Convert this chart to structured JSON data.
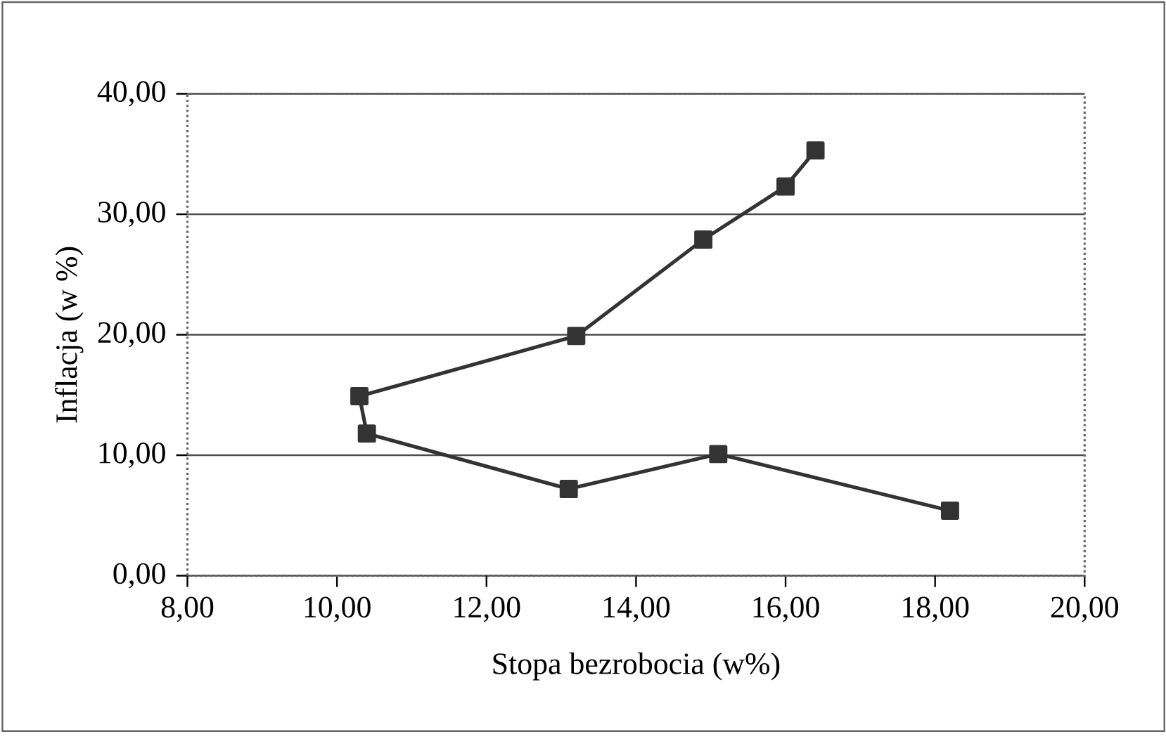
{
  "chart_data": {
    "type": "line",
    "xlabel": "Stopa bezrobocia (w%)",
    "ylabel": "Inflacja (w %)",
    "series": [
      {
        "color": "#333333",
        "x": [
          16.4,
          16.0,
          14.9,
          13.2,
          10.3,
          10.4,
          13.1,
          15.1,
          18.2
        ],
        "values": [
          35.3,
          32.3,
          27.9,
          19.9,
          14.9,
          11.8,
          7.2,
          10.1,
          5.4
        ]
      }
    ],
    "xlim": [
      8,
      20
    ],
    "ylim": [
      0,
      40
    ],
    "xticks": [
      {
        "value": 8,
        "label": "8,00"
      },
      {
        "value": 10,
        "label": "10,00"
      },
      {
        "value": 12,
        "label": "12,00"
      },
      {
        "value": 14,
        "label": "14,00"
      },
      {
        "value": 16,
        "label": "16,00"
      },
      {
        "value": 18,
        "label": "18,00"
      },
      {
        "value": 20,
        "label": "20,00"
      }
    ],
    "yticks": [
      {
        "value": 0,
        "label": "0,00"
      },
      {
        "value": 10,
        "label": "10,00"
      },
      {
        "value": 20,
        "label": "20,00"
      },
      {
        "value": 30,
        "label": "30,00"
      },
      {
        "value": 40,
        "label": "40,00"
      }
    ],
    "grid": "y",
    "marker": "square",
    "line_style": "solid"
  }
}
